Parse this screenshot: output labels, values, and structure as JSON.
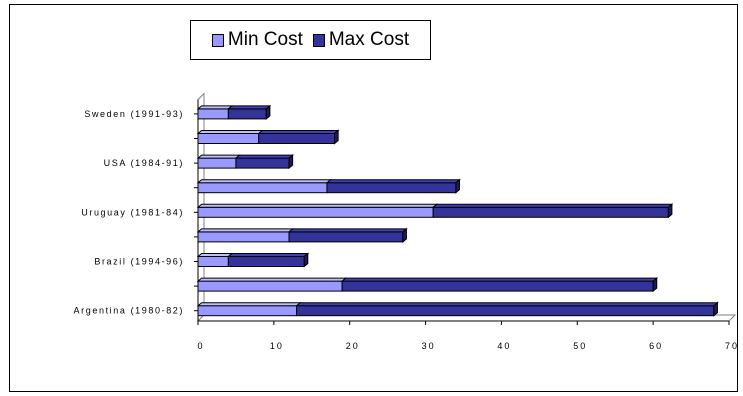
{
  "chart_data": {
    "type": "bar",
    "orientation": "horizontal",
    "stacked": true,
    "style": "3d",
    "categories": [
      "Argentina (1980-82)",
      "",
      "Brazil (1994-96)",
      "",
      "Uruguay (1981-84)",
      "",
      "USA (1984-91)",
      "",
      "Sweden (1991-93)"
    ],
    "series": [
      {
        "name": "Min Cost",
        "color": "#9999ff",
        "values": [
          13,
          19,
          4,
          12,
          31,
          17,
          5,
          8,
          4
        ]
      },
      {
        "name": "Max Cost",
        "color": "#333399",
        "values": [
          55,
          41,
          10,
          15,
          31,
          17,
          7,
          10,
          5
        ]
      }
    ],
    "xlim": [
      0,
      70
    ],
    "xticks": [
      0,
      10,
      20,
      30,
      40,
      50,
      60,
      70
    ],
    "grid": false,
    "legend": "top-center",
    "title": "",
    "xlabel": "",
    "ylabel": ""
  }
}
